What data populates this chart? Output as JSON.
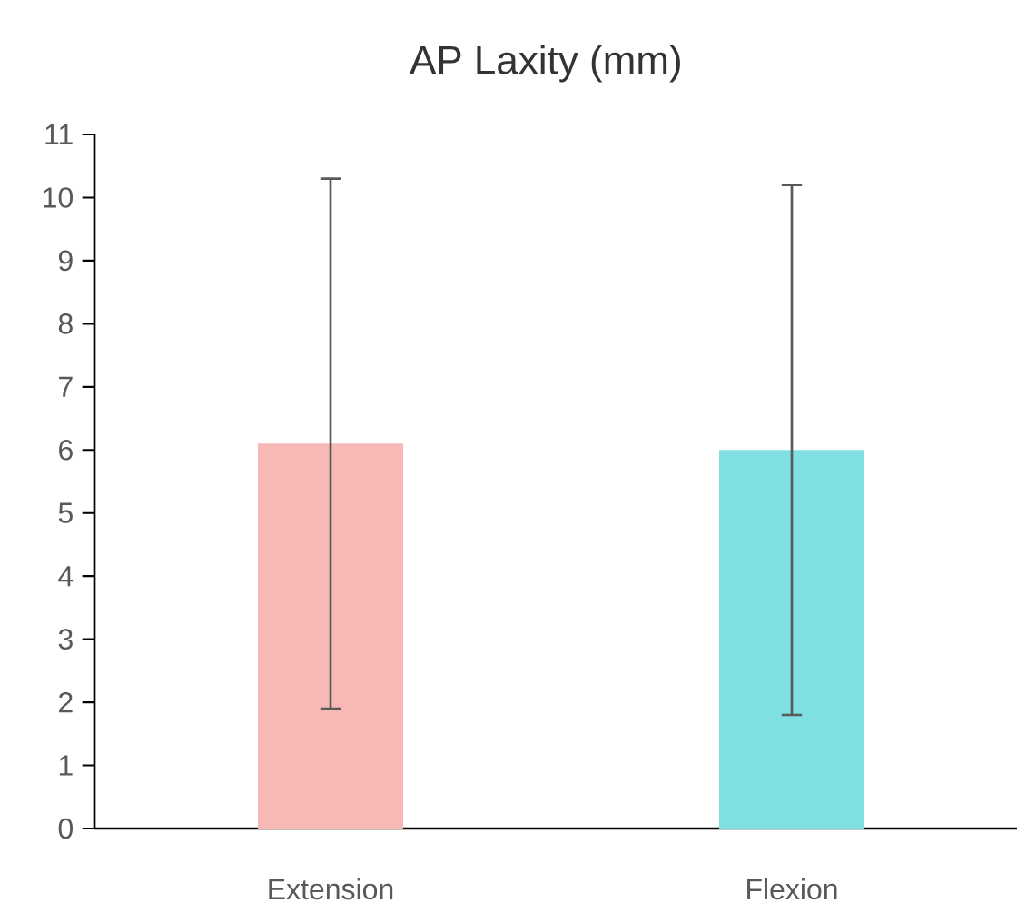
{
  "chart_data": {
    "type": "bar",
    "title": "AP Laxity (mm)",
    "categories": [
      "Extension",
      "Flexion"
    ],
    "values": [
      6.1,
      6.0
    ],
    "colors": [
      "#f8b9b6",
      "#80dfe0"
    ],
    "errors": [
      4.2,
      4.2
    ],
    "ylim": [
      0,
      11
    ],
    "yticks": [
      0,
      1,
      2,
      3,
      4,
      5,
      6,
      7,
      8,
      9,
      10,
      11
    ]
  }
}
